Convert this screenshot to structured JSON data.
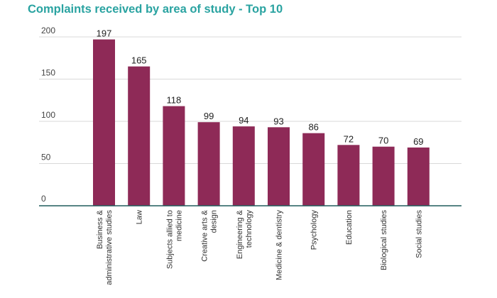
{
  "chart_data": {
    "type": "bar",
    "title": "Complaints received by area of study - Top 10",
    "categories": [
      [
        "Business &",
        "administrative studies"
      ],
      [
        "Law"
      ],
      [
        "Subjects allied to",
        "medicine"
      ],
      [
        "Creative arts &",
        "design"
      ],
      [
        "Engineering &",
        "technology"
      ],
      [
        "Medicine & dentistry"
      ],
      [
        "Psychology"
      ],
      [
        "Education"
      ],
      [
        "Biological studies"
      ],
      [
        "Social studies"
      ]
    ],
    "values": [
      197,
      165,
      118,
      99,
      94,
      93,
      86,
      72,
      70,
      69
    ],
    "ylim": [
      0,
      200
    ],
    "yticks": [
      0,
      50,
      100,
      150,
      200
    ],
    "grid": true,
    "legend": "none",
    "colors": {
      "bar": "#8e2a57",
      "title": "#2aa3a1",
      "axis": "#1f5c5b",
      "grid": "#d9d9d9"
    }
  }
}
